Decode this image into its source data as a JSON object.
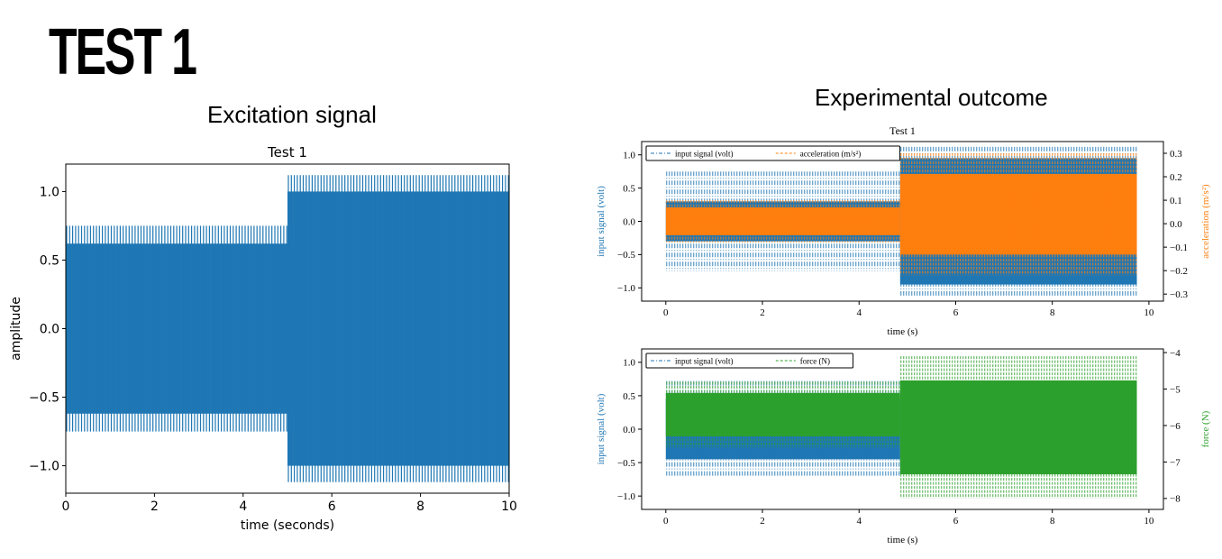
{
  "page": {
    "main_title": "TEST 1",
    "left_section_title": "Excitation signal",
    "right_section_title": "Experimental outcome"
  },
  "colors": {
    "blue": "#1f77b4",
    "orange": "#ff7f0e",
    "green": "#2ca02c"
  },
  "chart_data": [
    {
      "type": "line",
      "title": "Test 1",
      "xlabel": "time (seconds)",
      "ylabel": "amplitude",
      "xlim": [
        0,
        10
      ],
      "ylim": [
        -1.2,
        1.2
      ],
      "xticks": [
        0,
        2,
        4,
        6,
        8,
        10
      ],
      "yticks": [
        -1.0,
        -0.5,
        0.0,
        0.5,
        1.0
      ],
      "ytick_labels": [
        "−1.0",
        "−0.5",
        "0.0",
        "0.5",
        "1.0"
      ],
      "grid": false,
      "series": [
        {
          "color": "#1f77b4",
          "segments": [
            {
              "x_start": 0,
              "x_end": 5,
              "core": 0.62,
              "peak": 0.75
            },
            {
              "x_start": 5,
              "x_end": 10,
              "core": 1.0,
              "peak": 1.12
            }
          ]
        }
      ]
    },
    {
      "type": "line",
      "title": "Test 1",
      "xlabel": "time (s)",
      "ylabel": "input signal (volt)",
      "y2label": "acceleration (m/s²)",
      "xlim": [
        -0.5,
        10.3
      ],
      "ylim": [
        -1.2,
        1.2
      ],
      "y2lim": [
        -0.33,
        0.35
      ],
      "xticks": [
        0,
        2,
        4,
        6,
        8,
        10
      ],
      "yticks": [
        -1.0,
        -0.5,
        0.0,
        0.5,
        1.0
      ],
      "ytick_labels": [
        "−1.0",
        "−0.5",
        "0.0",
        "0.5",
        "1.0"
      ],
      "y2ticks": [
        -0.3,
        -0.2,
        -0.1,
        0.0,
        0.1,
        0.2,
        0.3
      ],
      "y2tick_labels": [
        "−0.3",
        "−0.2",
        "−0.1",
        "0.0",
        "0.1",
        "0.2",
        "0.3"
      ],
      "legend": "top-left",
      "series": [
        {
          "name": "input signal (volt)",
          "axis": "left",
          "color": "#1f77b4",
          "style": "dash-dot",
          "segments": [
            {
              "x_start": 0,
              "x_end": 4.85,
              "core": 0.3,
              "peak": 0.75
            },
            {
              "x_start": 4.85,
              "x_end": 9.75,
              "core": 0.95,
              "peak": 1.12
            }
          ]
        },
        {
          "name": "acceleration (m/s²)",
          "axis": "right",
          "color": "#ff7f0e",
          "style": "dashed",
          "segments": [
            {
              "x_start": 0,
              "x_end": 4.85,
              "low": -0.08,
              "high": 0.1
            },
            {
              "x_start": 4.85,
              "x_end": 9.75,
              "low": -0.22,
              "high": 0.3
            }
          ]
        }
      ]
    },
    {
      "type": "line",
      "title": "",
      "xlabel": "time (s)",
      "ylabel": "input signal (volt)",
      "y2label": "force (N)",
      "xlim": [
        -0.5,
        10.3
      ],
      "ylim": [
        -1.2,
        1.2
      ],
      "y2lim": [
        -8.3,
        -3.9
      ],
      "xticks": [
        0,
        2,
        4,
        6,
        8,
        10
      ],
      "yticks": [
        -1.0,
        -0.5,
        0.0,
        0.5,
        1.0
      ],
      "ytick_labels": [
        "−1.0",
        "−0.5",
        "0.0",
        "0.5",
        "1.0"
      ],
      "y2ticks": [
        -8,
        -7,
        -6,
        -5,
        -4
      ],
      "y2tick_labels": [
        "−8",
        "−7",
        "−6",
        "−5",
        "−4"
      ],
      "legend": "top-left",
      "series": [
        {
          "name": "input signal (volt)",
          "axis": "left",
          "color": "#1f77b4",
          "style": "dash-dot",
          "segments": [
            {
              "x_start": 0,
              "x_end": 4.85,
              "core": 0.45,
              "peak": 0.72
            },
            {
              "x_start": 4.85,
              "x_end": 9.75,
              "core": 0.5,
              "peak": 0.6
            }
          ]
        },
        {
          "name": "force (N)",
          "axis": "right",
          "color": "#2ca02c",
          "style": "dashed",
          "segments": [
            {
              "x_start": 0,
              "x_end": 4.85,
              "low": -6.6,
              "high": -4.8
            },
            {
              "x_start": 4.85,
              "x_end": 9.75,
              "low": -8.0,
              "high": -4.1
            }
          ]
        }
      ]
    }
  ]
}
